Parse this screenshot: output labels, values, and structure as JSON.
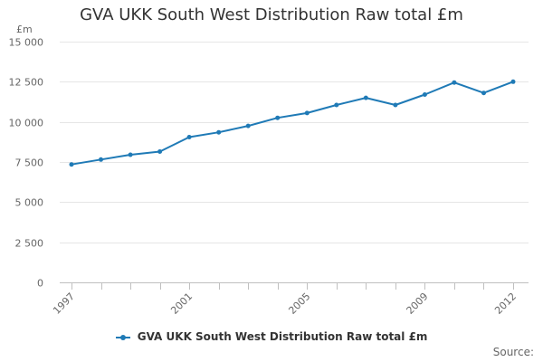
{
  "chart_data": {
    "type": "line",
    "title": "GVA UKK South West Distribution Raw total £m",
    "ylabel": "£m",
    "xlabel": "",
    "x": [
      1997,
      1998,
      1999,
      2000,
      2001,
      2002,
      2003,
      2004,
      2005,
      2006,
      2007,
      2008,
      2009,
      2010,
      2011,
      2012
    ],
    "series": [
      {
        "name": "GVA UKK South West Distribution Raw total £m",
        "color": "#1f7ab6",
        "values": [
          7350,
          7650,
          7950,
          8150,
          9050,
          9350,
          9750,
          10250,
          10550,
          11050,
          11500,
          11050,
          11700,
          12450,
          11800,
          12500
        ]
      }
    ],
    "x_tick_labels": [
      "1997",
      "2001",
      "2005",
      "2009",
      "2012"
    ],
    "y_ticks": [
      0,
      2500,
      5000,
      7500,
      10000,
      12500,
      15000
    ],
    "y_tick_labels": [
      "0",
      "2 500",
      "5 000",
      "7 500",
      "10 000",
      "12 500",
      "15 000"
    ],
    "ylim": [
      0,
      15000
    ],
    "grid": true,
    "legend_position": "bottom"
  },
  "credits": "Source:"
}
